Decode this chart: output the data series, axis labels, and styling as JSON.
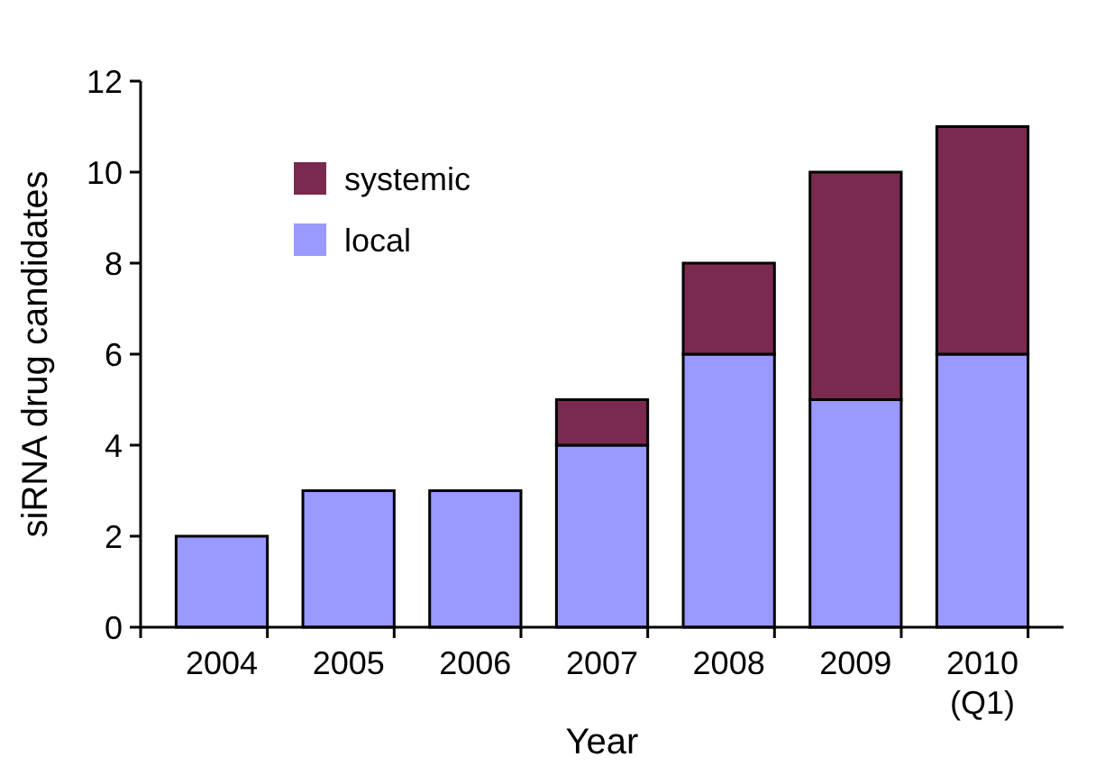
{
  "chart_data": {
    "type": "bar",
    "stacked": true,
    "xlabel": "Year",
    "ylabel": "siRNA drug candidates",
    "categories": [
      "2004",
      "2005",
      "2006",
      "2007",
      "2008",
      "2009",
      "2010 (Q1)"
    ],
    "series": [
      {
        "name": "local",
        "color": "#9999ff",
        "values": [
          2,
          3,
          3,
          4,
          6,
          5,
          6
        ]
      },
      {
        "name": "systemic",
        "color": "#7a2a4e",
        "values": [
          0,
          0,
          0,
          1,
          2,
          5,
          5
        ]
      }
    ],
    "ylim": [
      0,
      12
    ],
    "yticks": [
      0,
      2,
      4,
      6,
      8,
      10,
      12
    ],
    "grid": false,
    "legend": "top left"
  }
}
